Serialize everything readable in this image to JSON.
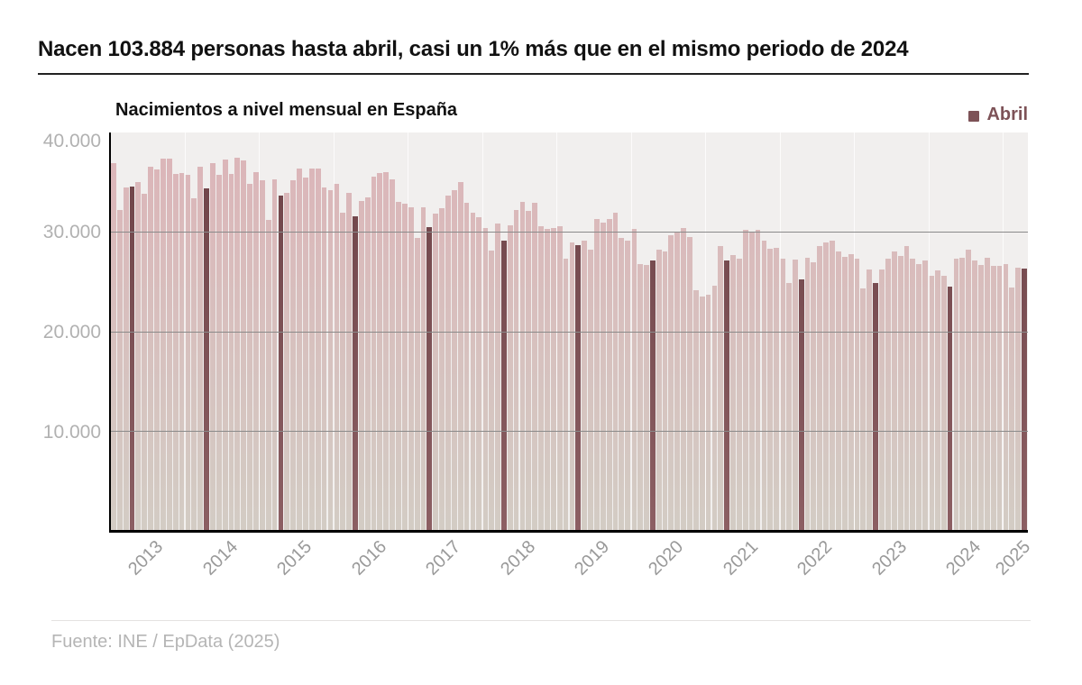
{
  "header": {
    "title": "Nacen 103.884 personas hasta abril, casi un 1% más que en el mismo periodo de 2024"
  },
  "chart": {
    "subtitle": "Nacimientos a nivel mensual en España",
    "legend": {
      "label": "Abril",
      "color": "#7d5257"
    }
  },
  "footer": {
    "source": "Fuente: INE / EpData (2025)"
  },
  "chart_data": {
    "type": "bar",
    "title": "Nacimientos a nivel mensual en España",
    "x_start": "2013-01",
    "x_end": "2025-04",
    "frequency": "monthly",
    "ylim": [
      0,
      40000
    ],
    "yticks": [
      40000,
      30000,
      20000,
      10000
    ],
    "ytick_labels": [
      "40.000",
      "30.000",
      "20.000",
      "10.000"
    ],
    "xtick_labels": [
      "2013",
      "2014",
      "2015",
      "2016",
      "2017",
      "2018",
      "2019",
      "2020",
      "2021",
      "2022",
      "2023",
      "2024",
      "2025"
    ],
    "grid": "horizontal",
    "legend_position": "top-right",
    "highlight": {
      "month_name": "Abril",
      "month_index": 4,
      "color": "#7d5257"
    },
    "series": [
      {
        "name": "Nacimientos mensuales",
        "values": [
          36900,
          32200,
          34500,
          34600,
          35000,
          33800,
          36600,
          36300,
          37400,
          37400,
          35800,
          35900,
          35700,
          33400,
          36600,
          34400,
          36900,
          35700,
          37300,
          35800,
          37500,
          37200,
          34800,
          36000,
          35200,
          31200,
          35300,
          33700,
          33900,
          35200,
          36400,
          35500,
          36400,
          36400,
          34500,
          34200,
          34800,
          31900,
          33900,
          31600,
          33100,
          33500,
          35600,
          35900,
          36000,
          35300,
          33000,
          32800,
          32500,
          29400,
          32500,
          30500,
          31800,
          32400,
          33700,
          34200,
          35000,
          32900,
          31900,
          31500,
          30400,
          28100,
          30800,
          29100,
          30700,
          32200,
          33000,
          32100,
          32900,
          30600,
          30300,
          30400,
          30600,
          27300,
          28900,
          28700,
          29100,
          28200,
          31300,
          30900,
          31300,
          31900,
          29400,
          29100,
          30300,
          26800,
          26700,
          27100,
          28200,
          28000,
          29700,
          29900,
          30400,
          29500,
          24100,
          23500,
          23700,
          24600,
          28600,
          27100,
          27700,
          27300,
          30200,
          29900,
          30200,
          29100,
          28300,
          28400,
          27300,
          24900,
          27200,
          25200,
          27400,
          26900,
          28600,
          28900,
          29100,
          28000,
          27500,
          27800,
          27300,
          24300,
          26200,
          24900,
          26200,
          27300,
          28000,
          27600,
          28600,
          27300,
          26800,
          27100,
          25600,
          26100,
          25600,
          24500,
          27300,
          27400,
          28200,
          27100,
          26700,
          27400,
          26600,
          26600,
          26800,
          24400,
          26400,
          26284
        ]
      }
    ],
    "colors": {
      "bar_gradient_top": "#dcb4b8",
      "bar_gradient_bottom": "#d3ccc4",
      "april_gradient_top": "#6d4247",
      "april_gradient_bottom": "#8c5f63",
      "plot_background": "#f1efee",
      "gridline": "#8a8a8a",
      "axis": "#000000",
      "ytick_label": "#b1b1b1",
      "xtick_label": "#999999",
      "source_text": "#b5b5b5"
    }
  }
}
